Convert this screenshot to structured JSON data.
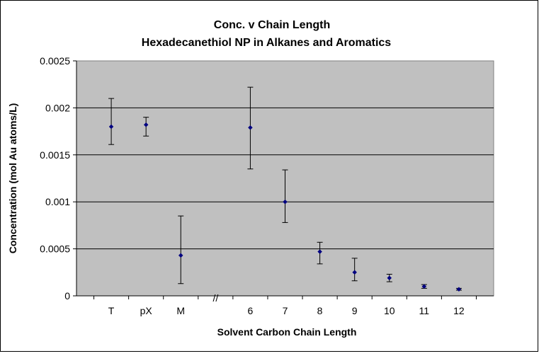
{
  "chart_data": {
    "type": "scatter",
    "title": "Conc. v Chain Length",
    "subtitle": "Hexadecanethiol NP in Alkanes and Aromatics",
    "xlabel": "Solvent Carbon Chain Length",
    "ylabel": "Concentration (mol Au atoms/L)",
    "categories": [
      "T",
      "pX",
      "M",
      "",
      "6",
      "7",
      "8",
      "9",
      "10",
      "11",
      "12"
    ],
    "axis_break_label": "//",
    "ylim": [
      0,
      0.0025
    ],
    "yticks": [
      "0",
      "0.0005",
      "0.001",
      "0.0015",
      "0.002",
      "0.0025"
    ],
    "grid": true,
    "legend": "none",
    "points": [
      {
        "category": "T",
        "y": 0.0018,
        "err_low": 0.00161,
        "err_high": 0.0021
      },
      {
        "category": "pX",
        "y": 0.00182,
        "err_low": 0.0017,
        "err_high": 0.0019
      },
      {
        "category": "M",
        "y": 0.00043,
        "err_low": 0.00013,
        "err_high": 0.00085
      },
      {
        "category": "6",
        "y": 0.00179,
        "err_low": 0.00135,
        "err_high": 0.00222
      },
      {
        "category": "7",
        "y": 0.001,
        "err_low": 0.00078,
        "err_high": 0.00134
      },
      {
        "category": "8",
        "y": 0.00047,
        "err_low": 0.00034,
        "err_high": 0.00057
      },
      {
        "category": "9",
        "y": 0.00025,
        "err_low": 0.00016,
        "err_high": 0.0004
      },
      {
        "category": "10",
        "y": 0.00019,
        "err_low": 0.00015,
        "err_high": 0.00023
      },
      {
        "category": "11",
        "y": 0.0001,
        "err_low": 8e-05,
        "err_high": 0.00012
      },
      {
        "category": "12",
        "y": 7e-05,
        "err_low": 6e-05,
        "err_high": 8e-05
      }
    ],
    "colors": {
      "plot_bg": "#c0c0c0",
      "marker": "#000080",
      "grid": "#000000",
      "error_bar": "#000000"
    }
  }
}
